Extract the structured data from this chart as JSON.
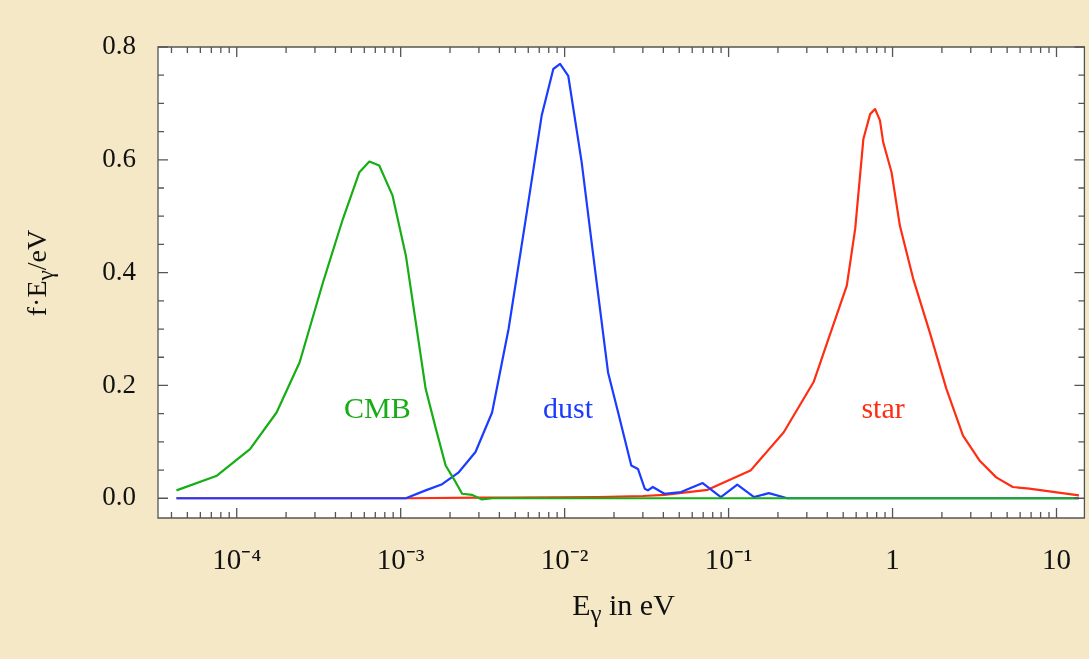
{
  "chart_data": {
    "type": "line",
    "xlabel": "E$_{γ}$ in eV",
    "ylabel": "f·E$_{γ}$/eV",
    "log": "x",
    "grid": false,
    "legend": false,
    "marker": "none",
    "line_style": "solid",
    "xlim": [
      3.31e-05,
      14.8
    ],
    "ylim": [
      -0.035,
      0.8
    ],
    "xticks": [
      {
        "value": 4e-05,
        "label": null
      },
      {
        "value": 5e-05,
        "label": null
      },
      {
        "value": 6e-05,
        "label": null
      },
      {
        "value": 7e-05,
        "label": null
      },
      {
        "value": 8e-05,
        "label": null
      },
      {
        "value": 9e-05,
        "label": null
      },
      {
        "value": 0.0001,
        "label": "10⁻⁴"
      },
      {
        "value": 0.0002,
        "label": null
      },
      {
        "value": 0.0003,
        "label": null
      },
      {
        "value": 0.0004,
        "label": null
      },
      {
        "value": 0.0005,
        "label": null
      },
      {
        "value": 0.0006,
        "label": null
      },
      {
        "value": 0.0007,
        "label": null
      },
      {
        "value": 0.0008,
        "label": null
      },
      {
        "value": 0.0009,
        "label": null
      },
      {
        "value": 0.001,
        "label": "10⁻³"
      },
      {
        "value": 0.002,
        "label": null
      },
      {
        "value": 0.003,
        "label": null
      },
      {
        "value": 0.004,
        "label": null
      },
      {
        "value": 0.005,
        "label": null
      },
      {
        "value": 0.006,
        "label": null
      },
      {
        "value": 0.007,
        "label": null
      },
      {
        "value": 0.008,
        "label": null
      },
      {
        "value": 0.009,
        "label": null
      },
      {
        "value": 0.01,
        "label": "10⁻²"
      },
      {
        "value": 0.02,
        "label": null
      },
      {
        "value": 0.03,
        "label": null
      },
      {
        "value": 0.04,
        "label": null
      },
      {
        "value": 0.05,
        "label": null
      },
      {
        "value": 0.06,
        "label": null
      },
      {
        "value": 0.07,
        "label": null
      },
      {
        "value": 0.08,
        "label": null
      },
      {
        "value": 0.09,
        "label": null
      },
      {
        "value": 0.1,
        "label": "10⁻¹"
      },
      {
        "value": 0.2,
        "label": null
      },
      {
        "value": 0.3,
        "label": null
      },
      {
        "value": 0.4,
        "label": null
      },
      {
        "value": 0.5,
        "label": null
      },
      {
        "value": 0.6,
        "label": null
      },
      {
        "value": 0.7,
        "label": null
      },
      {
        "value": 0.8,
        "label": null
      },
      {
        "value": 0.9,
        "label": null
      },
      1,
      {
        "value": 2,
        "label": null
      },
      {
        "value": 3,
        "label": null
      },
      {
        "value": 4,
        "label": null
      },
      {
        "value": 5,
        "label": null
      },
      {
        "value": 6,
        "label": null
      },
      {
        "value": 7,
        "label": null
      },
      {
        "value": 8,
        "label": null
      },
      {
        "value": 9,
        "label": null
      },
      10
    ],
    "yticks": [
      {
        "value": 0.0,
        "label": "0.0"
      },
      {
        "value": 0.05,
        "label": null
      },
      {
        "value": 0.1,
        "label": null
      },
      {
        "value": 0.15,
        "label": null
      },
      {
        "value": 0.2,
        "label": "0.2"
      },
      {
        "value": 0.25,
        "label": null
      },
      {
        "value": 0.3,
        "label": null
      },
      {
        "value": 0.35,
        "label": null
      },
      {
        "value": 0.4,
        "label": "0.4"
      },
      {
        "value": 0.45,
        "label": null
      },
      {
        "value": 0.5,
        "label": null
      },
      {
        "value": 0.55,
        "label": null
      },
      {
        "value": 0.6,
        "label": "0.6"
      },
      {
        "value": 0.65,
        "label": null
      },
      {
        "value": 0.7,
        "label": null
      },
      {
        "value": 0.75,
        "label": null
      },
      {
        "value": 0.8,
        "label": "0.8"
      }
    ],
    "series": [
      {
        "name": "CMB",
        "color": "#16ad16",
        "x": [
          4.29e-05,
          7.57e-05,
          0.0001205,
          0.000175,
          0.000242,
          0.000336,
          0.000444,
          0.00056,
          0.000644,
          0.00074,
          0.000891,
          0.001076,
          0.001236,
          0.00142,
          0.00164,
          0.00188,
          0.00211,
          0.00237,
          0.00273,
          0.00313,
          0.00363,
          13.7
        ],
        "values": [
          0.014,
          0.04,
          0.087,
          0.152,
          0.241,
          0.383,
          0.495,
          0.578,
          0.597,
          0.59,
          0.537,
          0.43,
          0.312,
          0.194,
          0.123,
          0.058,
          0.034,
          0.008,
          0.006,
          -0.002,
          0,
          0
        ]
      },
      {
        "name": "dust",
        "color": "#1a3cff",
        "x": [
          4.29e-05,
          0.001076,
          0.00142,
          0.00179,
          0.00226,
          0.00286,
          0.00361,
          0.00455,
          0.00575,
          0.00724,
          0.00853,
          0.00938,
          0.01052,
          0.0127,
          0.0153,
          0.0184,
          0.0212,
          0.0255,
          0.028,
          0.0308,
          0.0322,
          0.0345,
          0.0406,
          0.0513,
          0.0695,
          0.0897,
          0.113,
          0.143,
          0.176,
          0.228,
          13.7
        ],
        "values": [
          0,
          0,
          0.014,
          0.025,
          0.046,
          0.082,
          0.152,
          0.3,
          0.489,
          0.678,
          0.761,
          0.77,
          0.749,
          0.596,
          0.407,
          0.223,
          0.152,
          0.058,
          0.052,
          0.017,
          0.014,
          0.02,
          0.008,
          0.011,
          0.027,
          0.002,
          0.024,
          0.002,
          0.009,
          0,
          0
        ]
      },
      {
        "name": "star",
        "color": "#ff2d12",
        "x": [
          4.29e-05,
          0.001076,
          0.00313,
          0.016,
          0.03,
          0.0406,
          0.0745,
          0.136,
          0.217,
          0.33,
          0.526,
          0.592,
          0.664,
          0.73,
          0.782,
          0.838,
          0.877,
          0.986,
          1.109,
          1.337,
          1.687,
          2.13,
          2.69,
          3.39,
          4.29,
          5.41,
          6.82,
          13.7
        ],
        "values": [
          0,
          0,
          0.001,
          0.002,
          0.004,
          0.006,
          0.015,
          0.049,
          0.117,
          0.206,
          0.377,
          0.478,
          0.637,
          0.681,
          0.69,
          0.67,
          0.631,
          0.578,
          0.483,
          0.389,
          0.294,
          0.194,
          0.111,
          0.067,
          0.037,
          0.02,
          0.017,
          0.005
        ]
      }
    ]
  }
}
